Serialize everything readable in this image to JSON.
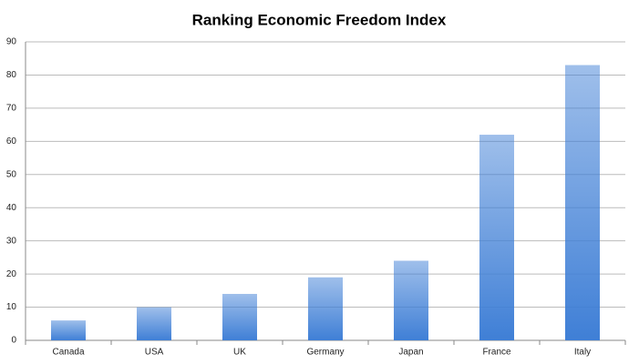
{
  "chart_data": {
    "type": "bar",
    "title": "Ranking Economic Freedom Index",
    "categories": [
      "Canada",
      "USA",
      "UK",
      "Germany",
      "Japan",
      "France",
      "Italy"
    ],
    "values": [
      6,
      10,
      14,
      19,
      24,
      62,
      83
    ],
    "color": "#3f7fd6",
    "ylim": [
      0,
      90
    ],
    "yticks": [
      0,
      10,
      20,
      30,
      40,
      50,
      60,
      70,
      80,
      90
    ],
    "grid": true
  }
}
